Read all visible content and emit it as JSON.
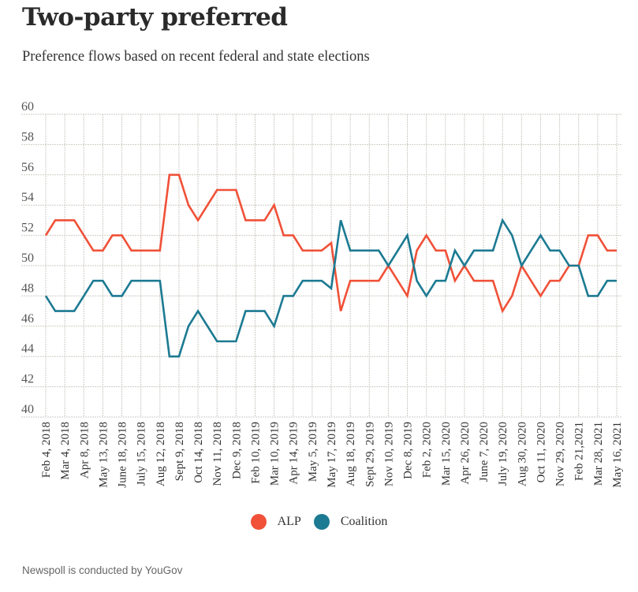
{
  "header": {
    "title": "Two-party preferred",
    "subtitle": "Preference flows based on recent federal and state elections"
  },
  "footer": {
    "note": "Newspoll is conducted by YouGov"
  },
  "chart_data": {
    "type": "line",
    "title": "Two-party preferred",
    "subtitle": "Preference flows based on recent federal and state elections",
    "xlabel": "",
    "ylabel": "",
    "ylim": [
      40,
      60
    ],
    "yticks": [
      40,
      42,
      44,
      46,
      48,
      50,
      52,
      54,
      56,
      58,
      60
    ],
    "grid": true,
    "legend_position": "bottom-center",
    "x_tick_labels": [
      "Feb 4, 2018",
      "Mar 4, 2018",
      "Apr 8, 2018",
      "May 13, 2018",
      "June 18, 2018",
      "July 15, 2018",
      "Aug 12, 2018",
      "Sept 9, 2018",
      "Oct 14, 2018",
      "Nov 11, 2018",
      "Dec 9, 2018",
      "Feb 10, 2019",
      "Mar 10, 2019",
      "Apr 14, 2019",
      "May 5, 2019",
      "May 17, 2019",
      "Aug 18, 2019",
      "Sept 29, 2019",
      "Nov 10, 2019",
      "Dec 8, 2019",
      "Feb 2, 2020",
      "Mar 15, 2020",
      "Apr 26, 2020",
      "June 7, 2020",
      "July 19, 2020",
      "Aug 30, 2020",
      "Oct 11, 2020",
      "Nov 29, 2020",
      "Feb 21,2021",
      "Mar 28, 2021",
      "May 16, 2021"
    ],
    "x_note": "Points are plotted at every labeled poll and one unlabeled poll between each pair of labels (61 polls).",
    "series": [
      {
        "name": "ALP",
        "color": "#f05138",
        "values": [
          52,
          53,
          53,
          53,
          52,
          51,
          51,
          52,
          52,
          51,
          51,
          51,
          51,
          56,
          56,
          54,
          53,
          54,
          55,
          55,
          55,
          53,
          53,
          53,
          54,
          52,
          52,
          51,
          51,
          51,
          51.5,
          47,
          49,
          49,
          49,
          49,
          50,
          49,
          48,
          51,
          52,
          51,
          51,
          49,
          50,
          49,
          49,
          49,
          47,
          48,
          50,
          49,
          48,
          49,
          49,
          50,
          50,
          52,
          52,
          51,
          51
        ]
      },
      {
        "name": "Coalition",
        "color": "#1c7a92",
        "values": [
          48,
          47,
          47,
          47,
          48,
          49,
          49,
          48,
          48,
          49,
          49,
          49,
          49,
          44,
          44,
          46,
          47,
          46,
          45,
          45,
          45,
          47,
          47,
          47,
          46,
          48,
          48,
          49,
          49,
          49,
          48.5,
          53,
          51,
          51,
          51,
          51,
          50,
          51,
          52,
          49,
          48,
          49,
          49,
          51,
          50,
          51,
          51,
          51,
          53,
          52,
          50,
          51,
          52,
          51,
          51,
          50,
          50,
          48,
          48,
          49,
          49
        ]
      }
    ]
  }
}
